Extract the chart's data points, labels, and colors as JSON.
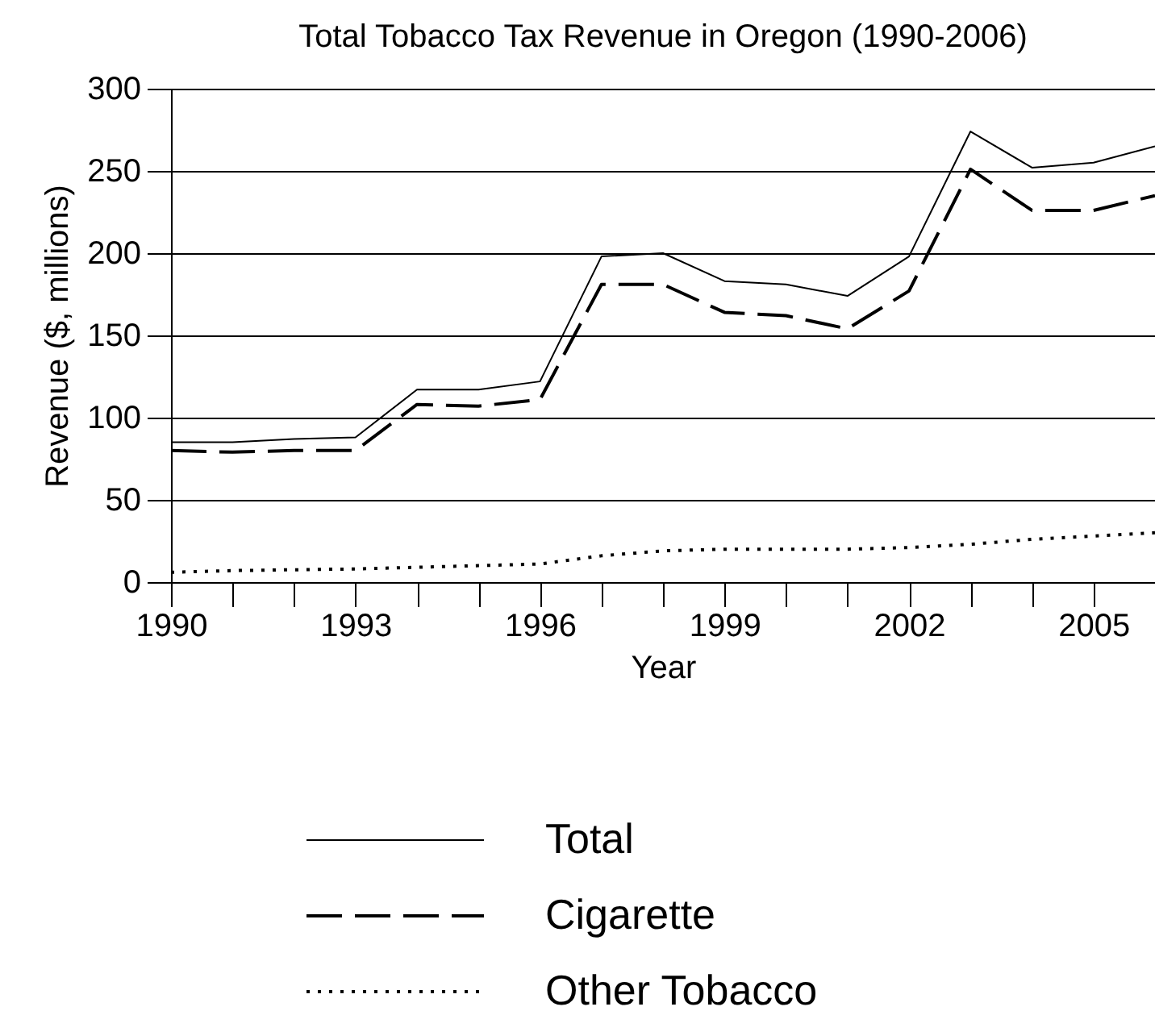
{
  "chart_data": {
    "type": "line",
    "title": "Total Tobacco Tax Revenue in Oregon (1990-2006)",
    "xlabel": "Year",
    "ylabel": "Revenue ($, millions)",
    "x": [
      1990,
      1991,
      1992,
      1993,
      1994,
      1995,
      1996,
      1997,
      1998,
      1999,
      2000,
      2001,
      2002,
      2003,
      2004,
      2005,
      2006
    ],
    "series": [
      {
        "name": "Total",
        "color": "#000000",
        "line_style": "solid",
        "values": [
          85,
          85,
          87,
          88,
          117,
          117,
          122,
          198,
          200,
          183,
          181,
          174,
          198,
          274,
          252,
          255,
          265
        ]
      },
      {
        "name": "Cigarette",
        "color": "#000000",
        "line_style": "dashed",
        "values": [
          80,
          79,
          80,
          80,
          108,
          107,
          111,
          181,
          181,
          164,
          162,
          154,
          177,
          251,
          226,
          226,
          235
        ]
      },
      {
        "name": "Other Tobacco",
        "color": "#000000",
        "line_style": "dotted",
        "values": [
          6,
          7,
          7.5,
          8,
          9,
          10,
          11,
          16,
          19,
          20,
          20,
          20,
          21,
          23,
          26,
          28,
          30
        ]
      }
    ],
    "xlim": [
      1990,
      2006
    ],
    "xticks": [
      1990,
      {
        "value": 1991,
        "label": null
      },
      {
        "value": 1992,
        "label": null
      },
      1993,
      {
        "value": 1994,
        "label": null
      },
      {
        "value": 1995,
        "label": null
      },
      1996,
      {
        "value": 1997,
        "label": null
      },
      {
        "value": 1998,
        "label": null
      },
      1999,
      {
        "value": 2000,
        "label": null
      },
      {
        "value": 2001,
        "label": null
      },
      2002,
      {
        "value": 2003,
        "label": null
      },
      {
        "value": 2004,
        "label": null
      },
      2005,
      {
        "value": 2006,
        "label": null
      }
    ],
    "ylim": [
      0,
      300
    ],
    "yticks": [
      0,
      50,
      100,
      150,
      200,
      250,
      300
    ],
    "grid": "y",
    "legend": "bottom",
    "marker": "none"
  }
}
